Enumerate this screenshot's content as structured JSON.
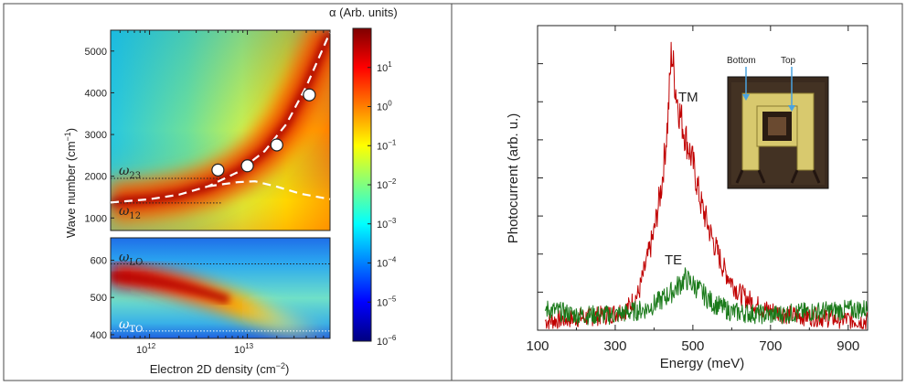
{
  "colors": {
    "tm": "#c00000",
    "te": "#1a7a1a",
    "frame": "#4a4a4a"
  },
  "chart_data": [
    {
      "type": "heatmap",
      "colorbar": {
        "title": "α (Arb. units)",
        "scale": "log",
        "range": [
          1e-06,
          100
        ],
        "ticks": [
          {
            "base": "10",
            "exp": "1",
            "value": 10
          },
          {
            "base": "10",
            "exp": "0",
            "value": 1
          },
          {
            "base": "10",
            "exp": "−1",
            "value": 0.1
          },
          {
            "base": "10",
            "exp": "−2",
            "value": 0.01
          },
          {
            "base": "10",
            "exp": "−3",
            "value": 0.001
          },
          {
            "base": "10",
            "exp": "−4",
            "value": 0.0001
          },
          {
            "base": "10",
            "exp": "−5",
            "value": 1e-05
          },
          {
            "base": "10",
            "exp": "−6",
            "value": 1e-06
          }
        ]
      },
      "xaxis": {
        "label_main": "Electron 2D density (cm",
        "label_sup": "−2",
        "label_end": ")",
        "scale": "log",
        "range": [
          400000000000.0,
          70000000000000.0
        ],
        "ticks": [
          {
            "base": "10",
            "exp": "12",
            "value": 1000000000000.0
          },
          {
            "base": "10",
            "exp": "13",
            "value": 10000000000000.0
          }
        ]
      },
      "yaxis": {
        "label_main": "Wave number (cm",
        "label_sup": "−1",
        "label_end": ")"
      },
      "top_panel": {
        "ylim": [
          700,
          5500
        ],
        "yticks": [
          "1000",
          "2000",
          "3000",
          "4000",
          "5000"
        ],
        "ytick_values": [
          1000,
          2000,
          3000,
          4000,
          5000
        ],
        "dotted_levels": [
          {
            "label_base": "ω",
            "label_sub": "23",
            "value": 1950,
            "x_end": 5500000000000.0
          },
          {
            "label_base": "ω",
            "label_sub": "12",
            "value": 1360,
            "x_end": 5500000000000.0
          }
        ],
        "upper_branch": {
          "x": [
            400000000000.0,
            1000000000000.0,
            2000000000000.0,
            4000000000000.0,
            8000000000000.0,
            15000000000000.0,
            25000000000000.0,
            40000000000000.0,
            70000000000000.0
          ],
          "y": [
            1370,
            1450,
            1560,
            1760,
            2100,
            2600,
            3250,
            4150,
            5450
          ]
        },
        "lower_branch": {
          "x": [
            4000000000000.0,
            8000000000000.0,
            12000000000000.0,
            20000000000000.0,
            35000000000000.0,
            70000000000000.0
          ],
          "y": [
            1760,
            1860,
            1880,
            1750,
            1580,
            1450
          ]
        },
        "points": [
          {
            "x": 5000000000000.0,
            "y": 2150
          },
          {
            "x": 10000000000000.0,
            "y": 2250
          },
          {
            "x": 20000000000000.0,
            "y": 2750
          },
          {
            "x": 43000000000000.0,
            "y": 3950
          }
        ]
      },
      "bottom_panel": {
        "ylim": [
          390,
          660
        ],
        "yticks": [
          "400",
          "500",
          "600"
        ],
        "ytick_values": [
          400,
          500,
          600
        ],
        "dotted_levels": [
          {
            "label_base": "ω",
            "label_sub": "LO",
            "value": 590
          },
          {
            "label_base": "ω",
            "label_sub": "TO",
            "value": 410
          }
        ]
      }
    },
    {
      "type": "line",
      "xlabel": "Energy (meV)",
      "ylabel": "Photocurrent (arb. u.)",
      "xlim": [
        100,
        950
      ],
      "xticks": [
        "100",
        "300",
        "500",
        "700",
        "900"
      ],
      "xtick_values": [
        100,
        300,
        500,
        700,
        900
      ],
      "ylim": [
        0,
        1
      ],
      "series": [
        {
          "name": "TM",
          "x": [
            120,
            200,
            280,
            330,
            360,
            380,
            400,
            420,
            435,
            445,
            455,
            465,
            480,
            500,
            520,
            550,
            580,
            620,
            680,
            750,
            850,
            950
          ],
          "y": [
            0.03,
            0.04,
            0.05,
            0.07,
            0.12,
            0.22,
            0.32,
            0.48,
            0.68,
            0.92,
            0.8,
            0.72,
            0.64,
            0.55,
            0.42,
            0.3,
            0.2,
            0.12,
            0.07,
            0.05,
            0.04,
            0.03
          ]
        },
        {
          "name": "TE",
          "x": [
            120,
            200,
            300,
            380,
            420,
            450,
            480,
            510,
            550,
            600,
            700,
            800,
            950
          ],
          "y": [
            0.07,
            0.05,
            0.05,
            0.07,
            0.1,
            0.13,
            0.17,
            0.14,
            0.09,
            0.06,
            0.05,
            0.06,
            0.07
          ]
        }
      ],
      "inset": {
        "labels": [
          "Bottom",
          "Top"
        ]
      }
    }
  ]
}
